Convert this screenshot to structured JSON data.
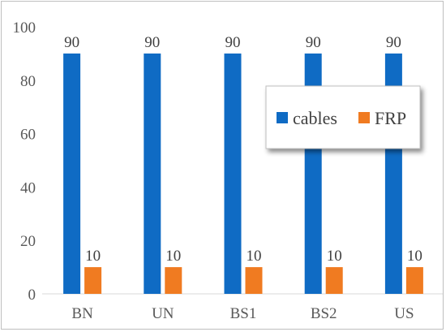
{
  "colors": {
    "cables": "#0f6bc4",
    "FRP": "#f07b21",
    "axis": "#d9d9d9",
    "text": "#595959"
  },
  "chart_data": {
    "type": "bar",
    "categories": [
      "BN",
      "UN",
      "BS1",
      "BS2",
      "US"
    ],
    "series": [
      {
        "name": "cables",
        "values": [
          90,
          90,
          90,
          90,
          90
        ]
      },
      {
        "name": "FRP",
        "values": [
          10,
          10,
          10,
          10,
          10
        ]
      }
    ],
    "data_labels": true,
    "title": "",
    "xlabel": "",
    "ylabel": "",
    "ylim": [
      0,
      100
    ],
    "yticks": [
      0,
      20,
      40,
      60,
      80,
      100
    ],
    "grid": false,
    "legend_position": "right"
  }
}
